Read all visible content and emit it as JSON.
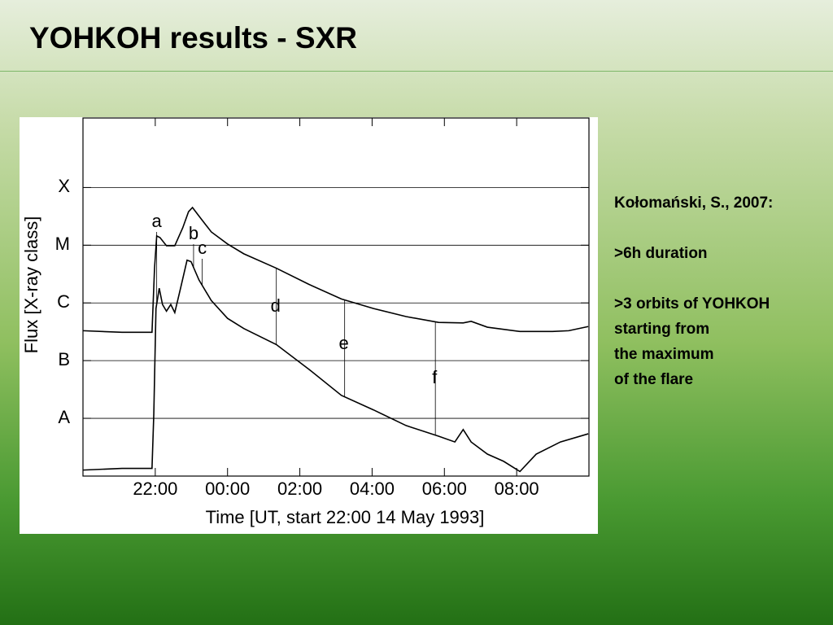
{
  "title": "YOHKOH results - SXR",
  "notes": [
    "Kołomański, S., 2007:",
    ">6h duration",
    ">3 orbits of YOHKOH",
    "starting from",
    "the maximum",
    "of the flare"
  ],
  "chart_data": {
    "type": "line",
    "xlabel": "Time [UT, start  22:00  14 May 1993]",
    "ylabel": "Flux  [X-ray class]",
    "xlim": [
      20,
      34
    ],
    "xticks": [
      {
        "value": 22,
        "label": "22:00"
      },
      {
        "value": 24,
        "label": "00:00"
      },
      {
        "value": 26,
        "label": "02:00"
      },
      {
        "value": 28,
        "label": "04:00"
      },
      {
        "value": 30,
        "label": "06:00"
      },
      {
        "value": 32,
        "label": "08:00"
      }
    ],
    "ylim": [
      1e-09,
      0.0016
    ],
    "ylog": true,
    "yticks": [
      {
        "value": 1e-08,
        "label": "A"
      },
      {
        "value": 1e-07,
        "label": "B"
      },
      {
        "value": 1e-06,
        "label": "C"
      },
      {
        "value": 1e-05,
        "label": "M"
      },
      {
        "value": 0.0001,
        "label": "X"
      }
    ],
    "grid": true,
    "series": [
      {
        "color": "#000000",
        "x": [
          20,
          21.08,
          21.91,
          21.98,
          22.04,
          22.13,
          22.31,
          22.54,
          22.76,
          22.92,
          23.03,
          23.21,
          23.55,
          24.0,
          24.45,
          25.35,
          26.25,
          27.15,
          28.04,
          28.94,
          29.84,
          30.52,
          30.74,
          31.19,
          32.09,
          32.99,
          33.44,
          33.98
        ],
        "values": [
          3.3e-07,
          3.1e-07,
          3.1e-07,
          4e-06,
          1.45e-05,
          1.36e-05,
          9.8e-06,
          9.8e-06,
          2e-05,
          3.8e-05,
          4.5e-05,
          3.2e-05,
          1.7e-05,
          1.05e-05,
          7.1e-06,
          4e-06,
          2.1e-06,
          1.17e-06,
          8e-07,
          5.8e-07,
          4.6e-07,
          4.5e-07,
          4.8e-07,
          3.8e-07,
          3.2e-07,
          3.2e-07,
          3.3e-07,
          3.9e-07
        ]
      },
      {
        "color": "#000000",
        "x": [
          20,
          21.08,
          21.91,
          21.96,
          22.02,
          22.11,
          22.2,
          22.31,
          22.43,
          22.54,
          22.7,
          22.88,
          22.99,
          23.21,
          23.55,
          24.0,
          24.45,
          25.35,
          26.25,
          27.15,
          28.04,
          28.94,
          29.84,
          30.29,
          30.52,
          30.74,
          31.19,
          31.64,
          32.09,
          32.54,
          33.21,
          33.98
        ],
        "values": [
          1.27e-09,
          1.36e-09,
          1.36e-09,
          1.2e-08,
          8e-07,
          1.8e-06,
          9.4e-07,
          7.2e-07,
          9.4e-07,
          6.8e-07,
          1.8e-06,
          5.5e-06,
          5.2e-06,
          2.5e-06,
          1.1e-06,
          5.4e-07,
          3.6e-07,
          1.9e-07,
          7.1e-08,
          2.5e-08,
          1.4e-08,
          7.5e-09,
          4.9e-09,
          3.9e-09,
          6.4e-09,
          3.9e-09,
          2.4e-09,
          1.8e-09,
          1.2e-09,
          2.4e-09,
          3.9e-09,
          5.4e-09
        ]
      }
    ],
    "annotations": [
      {
        "label": "a",
        "x": 22.04
      },
      {
        "label": "b",
        "x": 23.06
      },
      {
        "label": "c",
        "x": 23.3
      },
      {
        "label": "d",
        "x": 25.35
      },
      {
        "label": "e",
        "x": 27.24
      },
      {
        "label": "f",
        "x": 29.75
      }
    ]
  }
}
